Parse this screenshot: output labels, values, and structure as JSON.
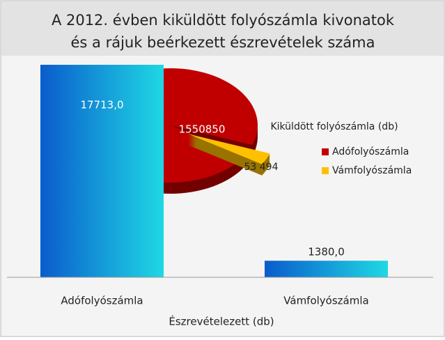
{
  "chart_data": [
    {
      "type": "bar",
      "title": "A 2012. évben kiküldött folyószámla kivonatok",
      "subtitle": "és a rájuk beérkezett észrevételek száma",
      "x_label": "Észrevételezett (db)",
      "categories": [
        "Adófolyószámla",
        "Vámfolyószámla"
      ],
      "values": [
        17713.0,
        1380.0
      ],
      "value_labels": [
        "17713,0",
        "1380,0"
      ],
      "color": [
        "#0a5ccc",
        "#1fd8e4"
      ],
      "ylim": [
        0,
        20000
      ]
    },
    {
      "type": "pie",
      "legend_title": "Kiküldött folyószámla (db)",
      "categories": [
        "Adófolyószámla",
        "Vámfolyószámla"
      ],
      "values": [
        1550850,
        53494
      ],
      "value_labels": [
        "1550850",
        "53 494"
      ],
      "colors": [
        "#c00000",
        "#ffc000"
      ]
    }
  ]
}
